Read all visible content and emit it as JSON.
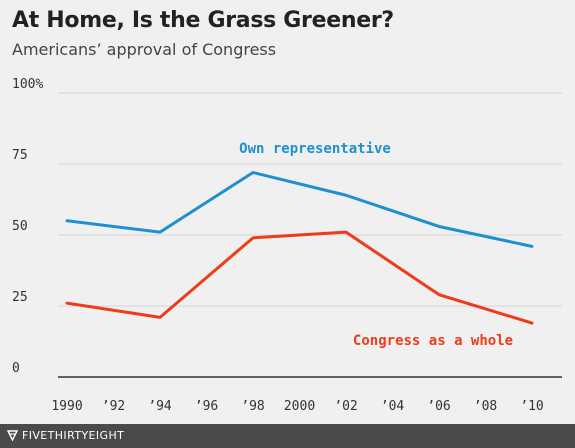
{
  "chart_data": {
    "type": "line",
    "title": "At Home, Is the Grass Greener?",
    "subtitle": "Americans’ approval of Congress",
    "x": [
      1990,
      1994,
      1998,
      2002,
      2006,
      2010
    ],
    "series": [
      {
        "name": "Own representative",
        "values": [
          55,
          51,
          72,
          64,
          53,
          46
        ],
        "color": "#1f8fd0"
      },
      {
        "name": "Congress as a whole",
        "values": [
          26,
          21,
          49,
          51,
          29,
          19
        ],
        "color": "#ef3b1a"
      }
    ],
    "xlim": [
      1990,
      2010
    ],
    "ylim": [
      0,
      100
    ],
    "xticks": [
      {
        "value": 1990,
        "label": "1990"
      },
      {
        "value": 1992,
        "label": "’92"
      },
      {
        "value": 1994,
        "label": "’94"
      },
      {
        "value": 1996,
        "label": "’96"
      },
      {
        "value": 1998,
        "label": "’98"
      },
      {
        "value": 2000,
        "label": "2000"
      },
      {
        "value": 2002,
        "label": "’02"
      },
      {
        "value": 2004,
        "label": "’04"
      },
      {
        "value": 2006,
        "label": "’06"
      },
      {
        "value": 2008,
        "label": "’08"
      },
      {
        "value": 2010,
        "label": "’10"
      }
    ],
    "yticks": [
      {
        "value": 0,
        "label": "0"
      },
      {
        "value": 25,
        "label": "25"
      },
      {
        "value": 50,
        "label": "50"
      },
      {
        "value": 75,
        "label": "75"
      },
      {
        "value": 100,
        "label": "100%"
      }
    ],
    "grid": true,
    "legend": "inline-labels",
    "gridColor": "#d6d6d6",
    "axisColor": "#333333"
  },
  "footer": {
    "brand": "FIVETHIRTYEIGHT",
    "background": "#4a4a4a"
  }
}
